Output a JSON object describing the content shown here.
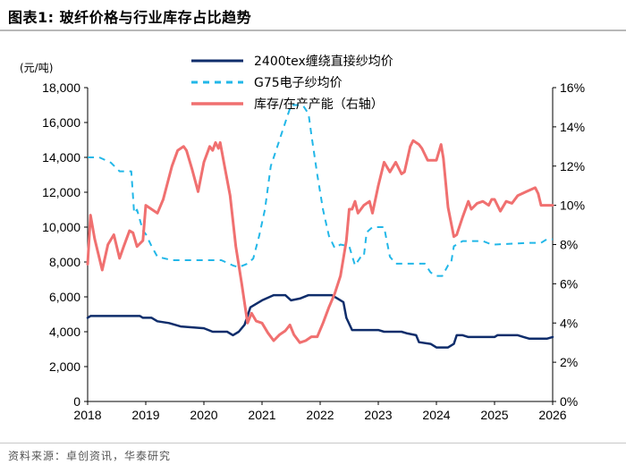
{
  "header": {
    "title": "图表1:  玻纤价格与行业库存占比趋势"
  },
  "footer": {
    "source": "资料来源：卓创资讯，华泰研究"
  },
  "chart_data": {
    "type": "line",
    "ylabel": "(元/吨)",
    "y_left": {
      "min": 0,
      "max": 18000,
      "step": 2000,
      "ticks": [
        "0",
        "2,000",
        "4,000",
        "6,000",
        "8,000",
        "10,000",
        "12,000",
        "14,000",
        "16,000",
        "18,000"
      ]
    },
    "y_right": {
      "min": 0,
      "max": 16,
      "step": 2,
      "ticks": [
        "0%",
        "2%",
        "4%",
        "6%",
        "8%",
        "10%",
        "12%",
        "14%",
        "16%"
      ]
    },
    "x": {
      "min": 2018,
      "max": 2026,
      "ticks": [
        "2018",
        "2019",
        "2020",
        "2021",
        "2022",
        "2023",
        "2024",
        "2025",
        "2026"
      ]
    },
    "legend_position": "top",
    "series": [
      {
        "name": "2400tex缠绕直接纱均价",
        "axis": "left",
        "color": "#0f2d6b",
        "style": "solid",
        "points": [
          [
            2018.0,
            4800
          ],
          [
            2018.05,
            4900
          ],
          [
            2018.9,
            4900
          ],
          [
            2018.95,
            4800
          ],
          [
            2019.1,
            4800
          ],
          [
            2019.2,
            4600
          ],
          [
            2019.4,
            4500
          ],
          [
            2019.6,
            4300
          ],
          [
            2019.8,
            4250
          ],
          [
            2020.0,
            4200
          ],
          [
            2020.15,
            4000
          ],
          [
            2020.4,
            4000
          ],
          [
            2020.5,
            3800
          ],
          [
            2020.6,
            4000
          ],
          [
            2020.7,
            4400
          ],
          [
            2020.8,
            5400
          ],
          [
            2020.9,
            5600
          ],
          [
            2021.0,
            5800
          ],
          [
            2021.2,
            6100
          ],
          [
            2021.4,
            6100
          ],
          [
            2021.5,
            5800
          ],
          [
            2021.65,
            5900
          ],
          [
            2021.8,
            6100
          ],
          [
            2022.0,
            6100
          ],
          [
            2022.2,
            6100
          ],
          [
            2022.3,
            5900
          ],
          [
            2022.4,
            5700
          ],
          [
            2022.45,
            4800
          ],
          [
            2022.55,
            4100
          ],
          [
            2022.8,
            4100
          ],
          [
            2023.0,
            4100
          ],
          [
            2023.1,
            4000
          ],
          [
            2023.4,
            4000
          ],
          [
            2023.5,
            3900
          ],
          [
            2023.65,
            3800
          ],
          [
            2023.7,
            3400
          ],
          [
            2023.9,
            3300
          ],
          [
            2024.0,
            3100
          ],
          [
            2024.2,
            3100
          ],
          [
            2024.3,
            3300
          ],
          [
            2024.35,
            3800
          ],
          [
            2024.45,
            3800
          ],
          [
            2024.55,
            3700
          ],
          [
            2024.7,
            3700
          ],
          [
            2024.9,
            3700
          ],
          [
            2025.0,
            3700
          ],
          [
            2025.05,
            3800
          ],
          [
            2025.4,
            3800
          ],
          [
            2025.5,
            3700
          ],
          [
            2025.6,
            3600
          ],
          [
            2025.9,
            3600
          ],
          [
            2026.0,
            3700
          ]
        ]
      },
      {
        "name": "G75电子纱均价",
        "axis": "left",
        "color": "#22b7e8",
        "style": "dashed",
        "points": [
          [
            2018.0,
            14000
          ],
          [
            2018.1,
            14000
          ],
          [
            2018.2,
            14000
          ],
          [
            2018.4,
            13700
          ],
          [
            2018.55,
            13200
          ],
          [
            2018.65,
            13200
          ],
          [
            2018.75,
            13200
          ],
          [
            2018.8,
            10800
          ],
          [
            2018.85,
            11000
          ],
          [
            2018.95,
            9800
          ],
          [
            2019.0,
            9600
          ],
          [
            2019.1,
            8900
          ],
          [
            2019.2,
            8300
          ],
          [
            2019.45,
            8100
          ],
          [
            2019.8,
            8100
          ],
          [
            2020.05,
            8100
          ],
          [
            2020.3,
            8100
          ],
          [
            2020.5,
            7800
          ],
          [
            2020.6,
            7700
          ],
          [
            2020.75,
            7900
          ],
          [
            2020.85,
            8200
          ],
          [
            2020.95,
            9500
          ],
          [
            2021.05,
            11000
          ],
          [
            2021.15,
            13500
          ],
          [
            2021.25,
            14500
          ],
          [
            2021.4,
            16000
          ],
          [
            2021.5,
            17000
          ],
          [
            2021.6,
            17000
          ],
          [
            2021.7,
            17000
          ],
          [
            2021.8,
            16500
          ],
          [
            2021.85,
            15300
          ],
          [
            2021.95,
            13000
          ],
          [
            2022.05,
            11000
          ],
          [
            2022.15,
            9500
          ],
          [
            2022.25,
            8800
          ],
          [
            2022.35,
            9000
          ],
          [
            2022.5,
            8900
          ],
          [
            2022.6,
            7800
          ],
          [
            2022.7,
            8300
          ],
          [
            2022.75,
            8300
          ],
          [
            2022.8,
            9700
          ],
          [
            2022.9,
            10000
          ],
          [
            2023.1,
            10000
          ],
          [
            2023.2,
            8300
          ],
          [
            2023.3,
            7900
          ],
          [
            2023.6,
            7900
          ],
          [
            2023.8,
            7900
          ],
          [
            2023.9,
            7400
          ],
          [
            2024.0,
            7200
          ],
          [
            2024.1,
            7200
          ],
          [
            2024.2,
            7800
          ],
          [
            2024.25,
            7900
          ],
          [
            2024.3,
            8900
          ],
          [
            2024.45,
            9200
          ],
          [
            2024.8,
            9200
          ],
          [
            2024.95,
            9000
          ],
          [
            2025.0,
            9000
          ],
          [
            2025.6,
            9100
          ],
          [
            2025.8,
            9100
          ],
          [
            2025.9,
            9300
          ],
          [
            2026.0,
            9300
          ]
        ]
      },
      {
        "name": "库存/在产产能（右轴）",
        "axis": "right",
        "color": "#f07070",
        "style": "solid",
        "points": [
          [
            2018.0,
            7.0
          ],
          [
            2018.05,
            9.5
          ],
          [
            2018.12,
            8.3
          ],
          [
            2018.25,
            6.7
          ],
          [
            2018.35,
            8.0
          ],
          [
            2018.45,
            8.5
          ],
          [
            2018.55,
            7.3
          ],
          [
            2018.62,
            7.9
          ],
          [
            2018.72,
            8.7
          ],
          [
            2018.78,
            8.6
          ],
          [
            2018.85,
            7.9
          ],
          [
            2018.95,
            8.2
          ],
          [
            2019.0,
            10.0
          ],
          [
            2019.1,
            9.8
          ],
          [
            2019.2,
            9.6
          ],
          [
            2019.3,
            10.3
          ],
          [
            2019.45,
            12.0
          ],
          [
            2019.55,
            12.8
          ],
          [
            2019.65,
            13.0
          ],
          [
            2019.7,
            12.8
          ],
          [
            2019.8,
            11.8
          ],
          [
            2019.9,
            10.7
          ],
          [
            2020.0,
            12.2
          ],
          [
            2020.1,
            13.0
          ],
          [
            2020.15,
            12.8
          ],
          [
            2020.2,
            13.2
          ],
          [
            2020.25,
            12.9
          ],
          [
            2020.28,
            13.2
          ],
          [
            2020.35,
            12.1
          ],
          [
            2020.45,
            10.5
          ],
          [
            2020.55,
            7.9
          ],
          [
            2020.65,
            6.0
          ],
          [
            2020.75,
            4.0
          ],
          [
            2020.82,
            4.5
          ],
          [
            2020.9,
            4.1
          ],
          [
            2021.0,
            4.0
          ],
          [
            2021.1,
            3.5
          ],
          [
            2021.2,
            3.1
          ],
          [
            2021.3,
            3.4
          ],
          [
            2021.4,
            3.6
          ],
          [
            2021.48,
            3.9
          ],
          [
            2021.55,
            3.4
          ],
          [
            2021.65,
            3.0
          ],
          [
            2021.75,
            3.1
          ],
          [
            2021.85,
            3.3
          ],
          [
            2021.95,
            3.3
          ],
          [
            2022.05,
            4.0
          ],
          [
            2022.15,
            4.8
          ],
          [
            2022.25,
            5.5
          ],
          [
            2022.35,
            6.4
          ],
          [
            2022.45,
            8.2
          ],
          [
            2022.5,
            9.8
          ],
          [
            2022.55,
            9.8
          ],
          [
            2022.6,
            10.2
          ],
          [
            2022.65,
            9.6
          ],
          [
            2022.75,
            10.0
          ],
          [
            2022.85,
            10.2
          ],
          [
            2022.9,
            9.6
          ],
          [
            2023.0,
            11.0
          ],
          [
            2023.1,
            12.2
          ],
          [
            2023.2,
            11.7
          ],
          [
            2023.3,
            12.2
          ],
          [
            2023.4,
            11.6
          ],
          [
            2023.45,
            11.7
          ],
          [
            2023.55,
            13.0
          ],
          [
            2023.6,
            13.3
          ],
          [
            2023.7,
            13.1
          ],
          [
            2023.75,
            12.9
          ],
          [
            2023.85,
            12.3
          ],
          [
            2023.95,
            12.3
          ],
          [
            2024.0,
            12.3
          ],
          [
            2024.08,
            13.1
          ],
          [
            2024.12,
            12.4
          ],
          [
            2024.2,
            9.9
          ],
          [
            2024.3,
            8.4
          ],
          [
            2024.35,
            8.5
          ],
          [
            2024.45,
            9.4
          ],
          [
            2024.55,
            10.2
          ],
          [
            2024.6,
            9.8
          ],
          [
            2024.7,
            10.1
          ],
          [
            2024.8,
            10.2
          ],
          [
            2024.9,
            10.0
          ],
          [
            2024.95,
            10.3
          ],
          [
            2025.0,
            10.3
          ],
          [
            2025.1,
            9.7
          ],
          [
            2025.2,
            10.2
          ],
          [
            2025.3,
            10.1
          ],
          [
            2025.4,
            10.5
          ],
          [
            2025.55,
            10.7
          ],
          [
            2025.7,
            10.9
          ],
          [
            2025.75,
            10.6
          ],
          [
            2025.8,
            10.0
          ],
          [
            2025.9,
            10.0
          ],
          [
            2026.0,
            10.0
          ]
        ]
      }
    ]
  }
}
